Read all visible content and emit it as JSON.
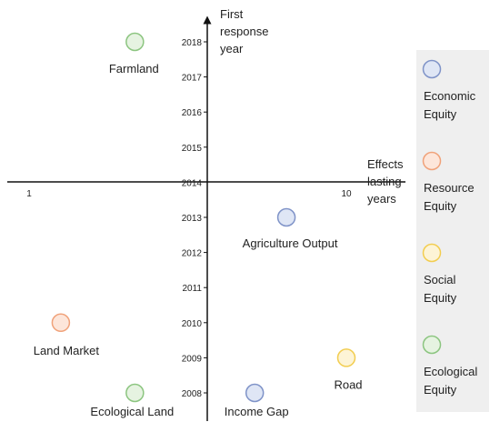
{
  "chart_data": {
    "type": "scatter",
    "xlabel": [
      "Effects",
      "lasting",
      "years"
    ],
    "ylabel": [
      "First",
      "response",
      "year"
    ],
    "x_ticks": [
      1,
      10
    ],
    "y_ticks": [
      2008,
      2009,
      2010,
      2011,
      2012,
      2013,
      2014,
      2015,
      2016,
      2017,
      2018
    ],
    "xlim": [
      0.5,
      11.5
    ],
    "ylim": [
      2007.4,
      2018.6
    ],
    "grid": false,
    "legend_position": "right",
    "legend": [
      {
        "name": "Economic Equity",
        "lines": [
          "Economic",
          "Equity"
        ],
        "stroke": "#7f93c8",
        "fill": "#dfe6f5"
      },
      {
        "name": "Resource Equity",
        "lines": [
          "Resource",
          "Equity"
        ],
        "stroke": "#f0a27a",
        "fill": "#fde6da"
      },
      {
        "name": "Social Equity",
        "lines": [
          "Social",
          "Equity"
        ],
        "stroke": "#f2cd50",
        "fill": "#fdf4d6"
      },
      {
        "name": "Ecological Equity",
        "lines": [
          "Ecological",
          "Equity"
        ],
        "stroke": "#8cc580",
        "fill": "#e6f3e1"
      }
    ],
    "points": [
      {
        "label": "Farmland",
        "x": 4.0,
        "y": 2018,
        "category": "Ecological Equity"
      },
      {
        "label": "Agriculture Output",
        "x": 8.3,
        "y": 2013,
        "category": "Economic Equity"
      },
      {
        "label": "Land Market",
        "x": 1.9,
        "y": 2010,
        "category": "Resource Equity"
      },
      {
        "label": "Road",
        "x": 10.0,
        "y": 2009,
        "category": "Social Equity"
      },
      {
        "label": "Ecological Land",
        "x": 4.0,
        "y": 2008,
        "category": "Ecological Equity"
      },
      {
        "label": "Income Gap",
        "x": 7.4,
        "y": 2008,
        "category": "Economic Equity"
      }
    ]
  }
}
